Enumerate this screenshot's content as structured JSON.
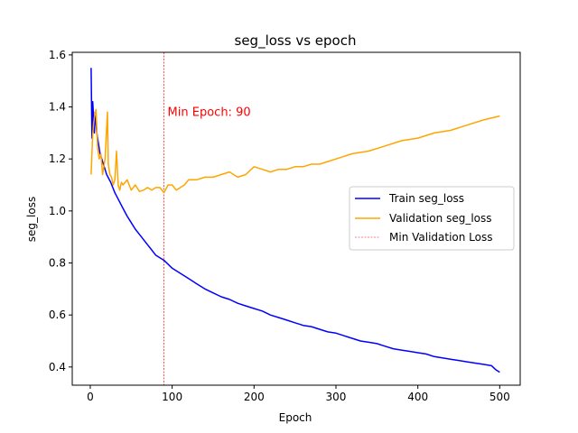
{
  "chart_data": {
    "type": "line",
    "title": "seg_loss vs epoch",
    "xlabel": "Epoch",
    "ylabel": "seg_loss",
    "xlim": [
      -22,
      525
    ],
    "ylim": [
      0.33,
      1.61
    ],
    "xticks": [
      0,
      100,
      200,
      300,
      400,
      500
    ],
    "yticks": [
      0.4,
      0.6,
      0.8,
      1.0,
      1.2,
      1.4,
      1.6
    ],
    "xtick_labels": [
      "0",
      "100",
      "200",
      "300",
      "400",
      "500"
    ],
    "ytick_labels": [
      "0.4",
      "0.6",
      "0.8",
      "1.0",
      "1.2",
      "1.4",
      "1.6"
    ],
    "grid": false,
    "legend_position": "center-right",
    "series": [
      {
        "name": "Train seg_loss",
        "color": "#0000ff",
        "x": [
          1,
          2,
          3,
          4,
          5,
          6,
          8,
          10,
          12,
          15,
          18,
          20,
          25,
          30,
          35,
          40,
          45,
          50,
          55,
          60,
          65,
          70,
          75,
          80,
          85,
          90,
          95,
          100,
          110,
          120,
          130,
          140,
          150,
          160,
          170,
          180,
          190,
          200,
          210,
          220,
          230,
          240,
          250,
          260,
          270,
          280,
          290,
          300,
          310,
          320,
          330,
          340,
          350,
          360,
          370,
          380,
          390,
          400,
          410,
          420,
          430,
          440,
          450,
          460,
          470,
          480,
          490,
          495,
          500
        ],
        "y": [
          1.55,
          1.28,
          1.42,
          1.36,
          1.3,
          1.38,
          1.3,
          1.26,
          1.22,
          1.19,
          1.16,
          1.14,
          1.11,
          1.07,
          1.04,
          1.01,
          0.98,
          0.955,
          0.93,
          0.91,
          0.89,
          0.87,
          0.85,
          0.83,
          0.82,
          0.81,
          0.795,
          0.78,
          0.76,
          0.74,
          0.72,
          0.7,
          0.685,
          0.67,
          0.66,
          0.645,
          0.635,
          0.625,
          0.615,
          0.6,
          0.59,
          0.58,
          0.57,
          0.56,
          0.555,
          0.545,
          0.535,
          0.53,
          0.52,
          0.51,
          0.5,
          0.495,
          0.49,
          0.48,
          0.47,
          0.465,
          0.46,
          0.455,
          0.45,
          0.44,
          0.435,
          0.43,
          0.425,
          0.42,
          0.415,
          0.41,
          0.405,
          0.39,
          0.38
        ]
      },
      {
        "name": "Validation seg_loss",
        "color": "#ffa500",
        "x": [
          1,
          3,
          5,
          7,
          9,
          11,
          13,
          15,
          18,
          21,
          22,
          24,
          26,
          28,
          30,
          32,
          34,
          36,
          38,
          40,
          45,
          50,
          55,
          60,
          65,
          70,
          75,
          80,
          85,
          90,
          95,
          100,
          105,
          110,
          115,
          120,
          130,
          140,
          150,
          160,
          170,
          180,
          190,
          200,
          210,
          220,
          230,
          240,
          250,
          260,
          270,
          280,
          290,
          300,
          320,
          340,
          360,
          380,
          400,
          420,
          440,
          460,
          480,
          500
        ],
        "y": [
          1.14,
          1.3,
          1.36,
          1.39,
          1.24,
          1.2,
          1.22,
          1.14,
          1.2,
          1.38,
          1.18,
          1.14,
          1.13,
          1.1,
          1.12,
          1.23,
          1.1,
          1.08,
          1.11,
          1.1,
          1.12,
          1.08,
          1.1,
          1.075,
          1.08,
          1.09,
          1.08,
          1.09,
          1.09,
          1.07,
          1.1,
          1.1,
          1.08,
          1.09,
          1.1,
          1.12,
          1.12,
          1.13,
          1.13,
          1.14,
          1.15,
          1.13,
          1.14,
          1.17,
          1.16,
          1.15,
          1.16,
          1.16,
          1.17,
          1.17,
          1.18,
          1.18,
          1.19,
          1.2,
          1.22,
          1.23,
          1.25,
          1.27,
          1.28,
          1.3,
          1.31,
          1.33,
          1.35,
          1.365
        ]
      }
    ],
    "vline": {
      "name": "Min Validation Loss",
      "x": 90,
      "color": "#ff0000",
      "annotation": "Min Epoch: 90",
      "annotation_y": 1.38
    }
  }
}
